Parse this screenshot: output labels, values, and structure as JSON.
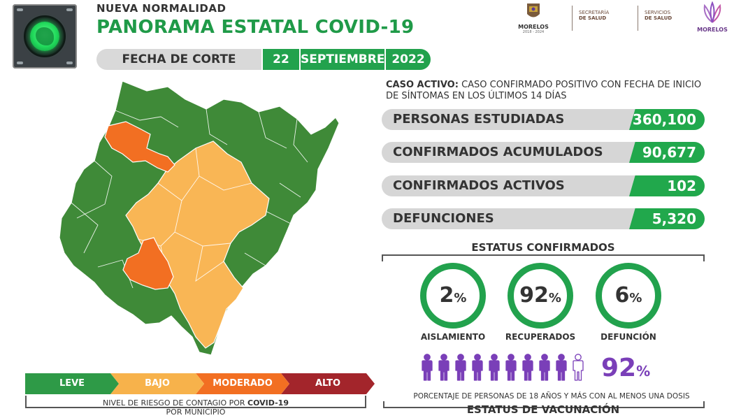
{
  "header": {
    "kicker": "NUEVA NORMALIDAD",
    "title": "PANORAMA ESTATAL COVID-19",
    "cut_label": "FECHA DE CORTE",
    "day": "22",
    "month": "SEPTIEMBRE",
    "year": "2022"
  },
  "logos": {
    "state_name": "MORELOS",
    "state_years": "2018 - 2024",
    "secretaria_line1": "SECRETARÍA",
    "secretaria_line2": "DE SALUD",
    "servicios_line1": "SERVICIOS",
    "servicios_line2": "DE SALUD",
    "brand": "MORELOS"
  },
  "active_case": {
    "term": "CASO ACTIVO:",
    "definition": " CASO CONFIRMADO POSITIVO CON FECHA DE INICIO DE SÍNTOMAS EN LOS ÚLTIMOS 14 DÍAS"
  },
  "stats": [
    {
      "label": "PERSONAS ESTUDIADAS",
      "value": "360,100"
    },
    {
      "label": "CONFIRMADOS ACUMULADOS",
      "value": "90,677"
    },
    {
      "label": "CONFIRMADOS ACTIVOS",
      "value": "102"
    },
    {
      "label": "DEFUNCIONES",
      "value": "5,320"
    }
  ],
  "status": {
    "title": "ESTATUS CONFIRMADOS",
    "items": [
      {
        "value": "2",
        "unit": "%",
        "label": "AISLAMIENTO"
      },
      {
        "value": "92",
        "unit": "%",
        "label": "RECUPERADOS"
      },
      {
        "value": "6",
        "unit": "%",
        "label": "DEFUNCIÓN"
      }
    ]
  },
  "vaccination": {
    "value": "92",
    "unit": "%",
    "filled_people": 9,
    "total_people": 10,
    "description": "PORCENTAJE DE PERSONAS DE 18 AÑOS Y MÁS CON AL MENOS UNA DOSIS",
    "title": "ESTATUS DE VACUNACIÓN"
  },
  "risk": {
    "levels": [
      {
        "label": "LEVE",
        "color": "#2e9a47"
      },
      {
        "label": "BAJO",
        "color": "#f7b24b"
      },
      {
        "label": "MODERADO",
        "color": "#f26f22"
      },
      {
        "label": "ALTO",
        "color": "#a3252b"
      }
    ],
    "caption_pre": "NIVEL DE RIESGO DE CONTAGIO POR ",
    "caption_bold": "COVID-19",
    "caption_post": "POR MUNICIPIO"
  },
  "colors": {
    "leve": "#3f8a38",
    "bajo": "#f9b655",
    "moderado": "#f26f22",
    "accent_green": "#22a24d",
    "vaccine_purple": "#7a3fb8"
  }
}
